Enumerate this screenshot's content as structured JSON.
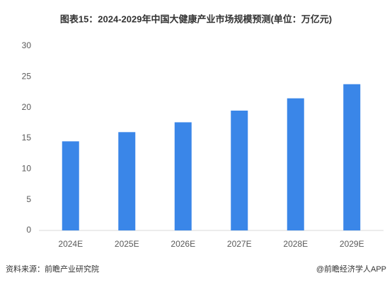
{
  "chart_data": {
    "type": "bar",
    "title": "图表15：2024-2029年中国大健康产业市场规模预测(单位：万亿元)",
    "categories": [
      "2024E",
      "2025E",
      "2026E",
      "2027E",
      "2028E",
      "2029E"
    ],
    "values": [
      14.5,
      16,
      17.6,
      19.5,
      21.5,
      23.8
    ],
    "color": "#3a86e8",
    "ylim": [
      0,
      30
    ],
    "yticks": [
      0,
      5,
      10,
      15,
      20,
      25,
      30
    ],
    "grid": false,
    "source": "资料来源：前瞻产业研究院",
    "credit": "@前瞻经济学人APP"
  }
}
